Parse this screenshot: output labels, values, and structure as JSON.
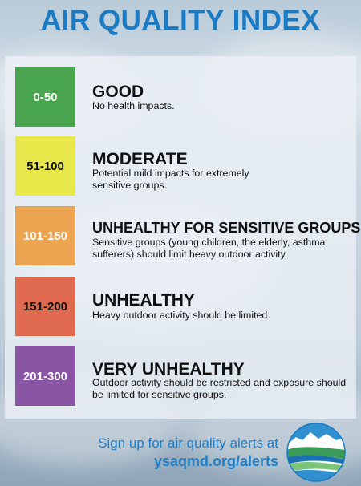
{
  "title": "AIR QUALITY INDEX",
  "levels": [
    {
      "range": "0-50",
      "category": "GOOD",
      "description": "No health impacts.",
      "color": "#4aa54f",
      "text_color": "#ffffff"
    },
    {
      "range": "51-100",
      "category": "MODERATE",
      "description": "Potential mild impacts for extremely sensitive groups.",
      "color": "#e8e84a",
      "text_color": "#111111"
    },
    {
      "range": "101-150",
      "category": "UNHEALTHY FOR SENSITIVE GROUPS",
      "description": "Sensitive groups (young children, the elderly, asthma sufferers) should limit heavy outdoor activity.",
      "color": "#eda451",
      "text_color": "#ffffff"
    },
    {
      "range": "151-200",
      "category": "UNHEALTHY",
      "description": "Heavy outdoor activity should be limited.",
      "color": "#df6a4f",
      "text_color": "#111111"
    },
    {
      "range": "201-300",
      "category": "VERY UNHEALTHY",
      "description": "Outdoor activity should be restricted and exposure should be limited for sensitive groups.",
      "color": "#8b55a6",
      "text_color": "#ffffff"
    }
  ],
  "footer": {
    "line1": "Sign up for air quality alerts at",
    "line2": "ysaqmd.org/alerts"
  },
  "colors": {
    "accent": "#1a7bc4"
  },
  "logo_icon": "mountain-river-logo-icon"
}
